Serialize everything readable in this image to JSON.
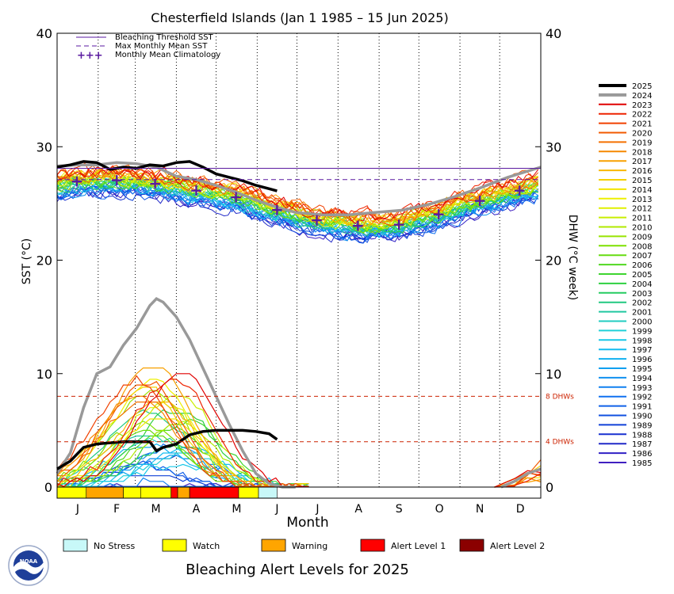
{
  "chart_data": {
    "type": "line",
    "title": "Chesterfield Islands       (Jan 1 1985 – 15 Jun 2025)",
    "xlabel": "Month",
    "ylabel": "SST (°C)",
    "y2label": "DHW (°C week)",
    "ylim": [
      0,
      40
    ],
    "yticks": [
      0,
      10,
      20,
      30,
      40
    ],
    "xlim": [
      0,
      365
    ],
    "months": [
      "J",
      "F",
      "M",
      "A",
      "M",
      "J",
      "J",
      "A",
      "S",
      "O",
      "N",
      "D"
    ],
    "grid": "dotted vertical month lines",
    "legend_lines": [
      "Bleaching Threshold SST",
      "Max Monthly Mean SST",
      "Monthly Mean Climatology"
    ],
    "bleaching_threshold": 28.1,
    "max_monthly_mean": 27.1,
    "monthly_climatology": {
      "x": [
        15,
        45,
        74,
        105,
        135,
        166,
        196,
        227,
        258,
        288,
        319,
        349
      ],
      "y": [
        26.9,
        27.0,
        26.7,
        26.1,
        25.5,
        24.4,
        23.5,
        23.0,
        23.1,
        24.0,
        25.2,
        26.1
      ]
    },
    "dhw_reference_lines": [
      {
        "value": 8,
        "label": "8 DHWs"
      },
      {
        "value": 4,
        "label": "4 DHWs"
      }
    ],
    "years": [
      "2025",
      "2024",
      "2023",
      "2022",
      "2021",
      "2020",
      "2019",
      "2018",
      "2017",
      "2016",
      "2015",
      "2014",
      "2013",
      "2012",
      "2011",
      "2010",
      "2009",
      "2008",
      "2007",
      "2006",
      "2005",
      "2004",
      "2003",
      "2002",
      "2001",
      "2000",
      "1999",
      "1998",
      "1997",
      "1996",
      "1995",
      "1994",
      "1993",
      "1992",
      "1991",
      "1990",
      "1989",
      "1988",
      "1987",
      "1986",
      "1985"
    ],
    "year_colors": [
      "#000000",
      "#999999",
      "#e00000",
      "#ee2200",
      "#f04000",
      "#f25a00",
      "#f47000",
      "#f68800",
      "#f8a000",
      "#f8b800",
      "#f4d000",
      "#f2e400",
      "#eef000",
      "#e0f000",
      "#c8ee00",
      "#b0ea00",
      "#98e400",
      "#7ee000",
      "#66dc10",
      "#50d820",
      "#3ed430",
      "#2ed040",
      "#24cc60",
      "#20c880",
      "#20c8a0",
      "#20ccc0",
      "#20d0d8",
      "#18c8e8",
      "#14bcf0",
      "#10b0f0",
      "#10a0f0",
      "#1090f0",
      "#1080f0",
      "#1070f0",
      "#1060e8",
      "#1050e0",
      "#1040d8",
      "#1830d0",
      "#2028c8",
      "#3020c4",
      "#4020c0"
    ],
    "sst_2025": {
      "x": [
        0,
        10,
        20,
        30,
        40,
        50,
        60,
        70,
        80,
        90,
        100,
        110,
        120,
        130,
        140,
        150,
        160,
        166
      ],
      "y": [
        28.2,
        28.4,
        28.7,
        28.6,
        28.0,
        28.2,
        28.1,
        28.4,
        28.3,
        28.6,
        28.7,
        28.2,
        27.6,
        27.3,
        27.0,
        26.6,
        26.3,
        26.1
      ]
    },
    "sst_2024": {
      "x": [
        0,
        15,
        30,
        45,
        60,
        75,
        90,
        105,
        120,
        135,
        150,
        165,
        180,
        200,
        220,
        240,
        260,
        280,
        300,
        320,
        340,
        365
      ],
      "y": [
        28.3,
        28.4,
        28.4,
        28.6,
        28.5,
        28.2,
        27.4,
        27.1,
        26.6,
        26.0,
        25.3,
        24.7,
        24.2,
        24.0,
        24.0,
        24.2,
        24.4,
        24.9,
        25.6,
        26.4,
        27.3,
        28.2
      ]
    },
    "dhw_2025": {
      "x": [
        0,
        10,
        20,
        30,
        40,
        50,
        60,
        70,
        75,
        80,
        90,
        100,
        110,
        120,
        130,
        140,
        150,
        160,
        166
      ],
      "y": [
        1.6,
        2.3,
        3.5,
        3.8,
        3.9,
        4.0,
        4.0,
        4.0,
        3.2,
        3.5,
        3.8,
        4.6,
        4.9,
        5.0,
        5.0,
        5.0,
        4.9,
        4.7,
        4.2
      ]
    },
    "dhw_2024": {
      "x": [
        0,
        10,
        20,
        30,
        40,
        50,
        60,
        70,
        75,
        80,
        90,
        100,
        110,
        120,
        130,
        140,
        150,
        160,
        170,
        180
      ],
      "y": [
        1.2,
        3.0,
        7.0,
        10.0,
        10.6,
        12.5,
        14.0,
        16.0,
        16.6,
        16.3,
        15.0,
        13.0,
        10.5,
        8.0,
        5.5,
        3.2,
        1.2,
        0.3,
        0.0,
        0.0
      ]
    },
    "dhw_2024_december": {
      "x": [
        335,
        345,
        355,
        365
      ],
      "y": [
        0.0,
        0.5,
        1.2,
        1.6
      ]
    },
    "alert_levels_2025": [
      {
        "x0": 0,
        "x1": 22,
        "level": "Watch"
      },
      {
        "x0": 22,
        "x1": 50,
        "level": "Warning"
      },
      {
        "x0": 50,
        "x1": 63,
        "level": "Watch"
      },
      {
        "x0": 63,
        "x1": 86,
        "level": "Watch"
      },
      {
        "x0": 86,
        "x1": 91,
        "level": "Alert Level 1"
      },
      {
        "x0": 91,
        "x1": 100,
        "level": "Warning"
      },
      {
        "x0": 100,
        "x1": 137,
        "level": "Alert Level 1"
      },
      {
        "x0": 137,
        "x1": 152,
        "level": "Watch"
      },
      {
        "x0": 152,
        "x1": 166,
        "level": "No Stress"
      }
    ]
  },
  "alert_legend": [
    {
      "label": "No Stress",
      "color": "#c8f8f8"
    },
    {
      "label": "Watch",
      "color": "#ffff00"
    },
    {
      "label": "Warning",
      "color": "#ffa500"
    },
    {
      "label": "Alert Level 1",
      "color": "#ff0000"
    },
    {
      "label": "Alert Level 2",
      "color": "#8b0000"
    }
  ],
  "footer": {
    "title": "Bleaching Alert Levels for 2025"
  },
  "logo": {
    "text": "NOAA",
    "icon": "noaa-logo-icon"
  }
}
